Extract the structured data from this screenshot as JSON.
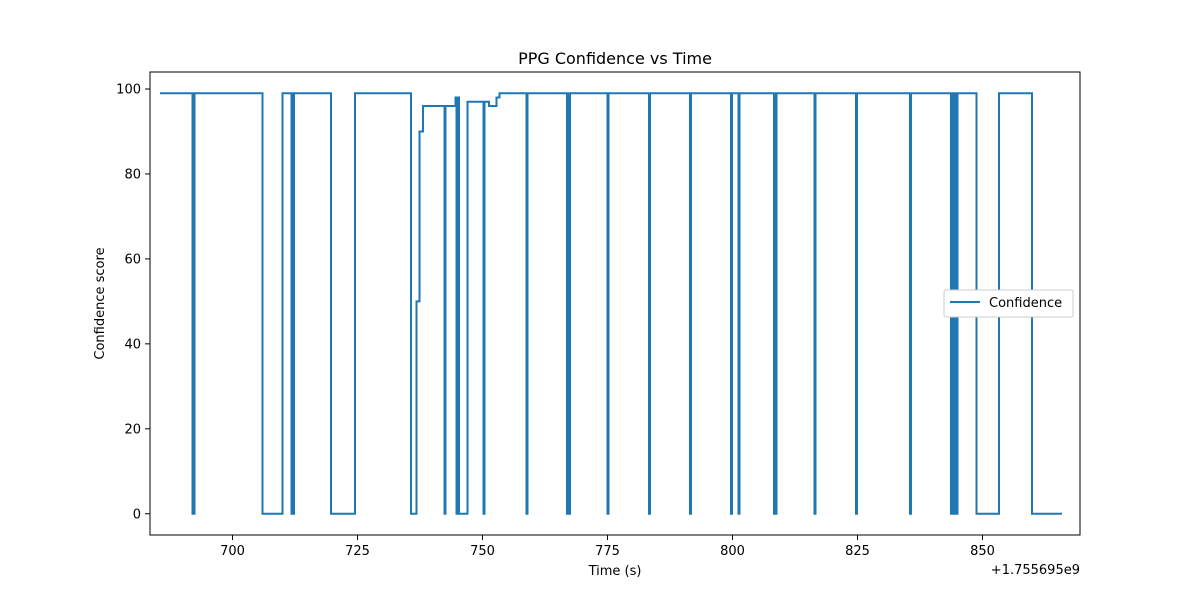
{
  "chart_data": {
    "type": "line",
    "title": "PPG Confidence vs Time",
    "xlabel": "Time (s)",
    "ylabel": "Confidence score",
    "offset_text": "+1.755695e9",
    "xlim": [
      683.5,
      869.5
    ],
    "ylim": [
      -5,
      104
    ],
    "xticks": [
      700,
      725,
      750,
      775,
      800,
      825,
      850
    ],
    "yticks": [
      0,
      20,
      40,
      60,
      80,
      100
    ],
    "grid": false,
    "legend_position": "center-right",
    "color": "#1f77b4",
    "series": [
      {
        "name": "Confidence",
        "step": true,
        "x": [
          685.5,
          692.0,
          692.1,
          692.3,
          692.4,
          706.0,
          710.0,
          711.8,
          712.0,
          712.2,
          712.3,
          719.7,
          724.5,
          735.7,
          736.8,
          737.4,
          738.1,
          742.4,
          742.6,
          744.6,
          744.8,
          745.1,
          745.3,
          747.0,
          750.2,
          750.4,
          751.3,
          752.3,
          752.8,
          753.4,
          758.8,
          759.0,
          766.9,
          767.1,
          767.3,
          767.5,
          775.0,
          775.2,
          783.3,
          783.5,
          791.5,
          791.7,
          799.7,
          799.9,
          801.2,
          801.4,
          808.3,
          808.5,
          808.6,
          808.8,
          816.4,
          816.6,
          824.7,
          824.9,
          835.5,
          835.7,
          843.7,
          843.8,
          844.2,
          844.4,
          844.8,
          845.0,
          848.8,
          853.3,
          859.9,
          865.9
        ],
        "y": [
          99,
          0,
          99,
          0,
          99,
          0,
          99,
          0,
          99,
          0,
          99,
          0,
          99,
          0,
          50,
          90,
          96,
          0,
          96,
          98,
          0,
          98,
          0,
          97,
          0,
          97,
          96,
          96,
          98,
          99,
          0,
          99,
          0,
          99,
          0,
          99,
          0,
          99,
          0,
          99,
          0,
          99,
          0,
          99,
          0,
          99,
          0,
          99,
          0,
          99,
          0,
          99,
          0,
          99,
          0,
          99,
          0,
          99,
          0,
          99,
          0,
          99,
          0,
          99,
          0,
          0
        ]
      }
    ]
  }
}
